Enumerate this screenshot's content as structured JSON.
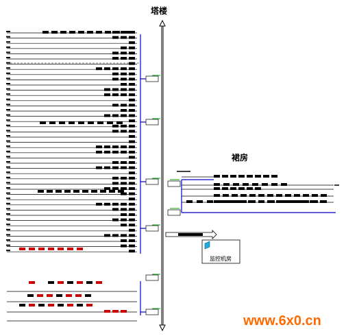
{
  "labels": {
    "tower": "塔楼",
    "podium": "裙房",
    "control_room": "监控机房"
  },
  "watermark": "www.6x0.cn"
}
